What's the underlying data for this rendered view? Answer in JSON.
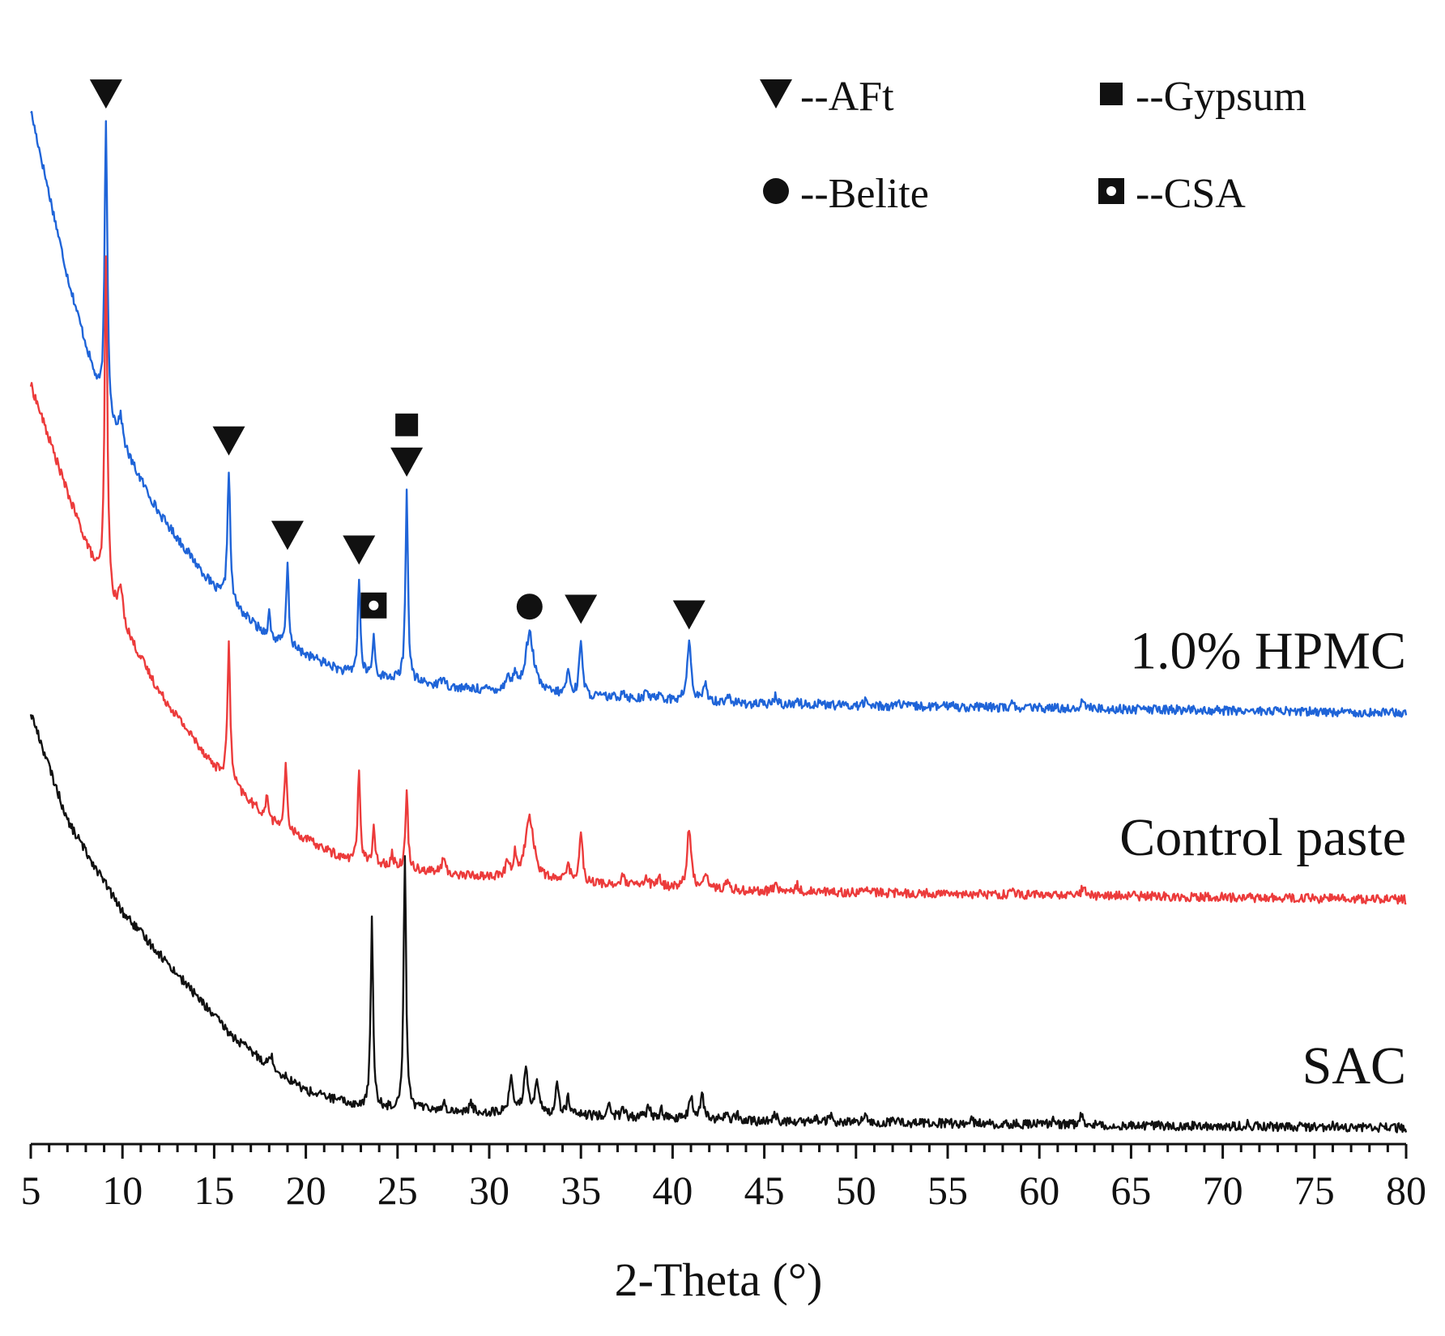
{
  "chart_data": {
    "type": "line",
    "title": "",
    "xlabel": "2-Theta (°)",
    "ylabel": "",
    "xlim": [
      5,
      80
    ],
    "xticks": [
      5,
      10,
      15,
      20,
      25,
      30,
      35,
      40,
      45,
      50,
      55,
      60,
      65,
      70,
      75,
      80
    ],
    "xtick_labels": [
      "5",
      "10",
      "15",
      "20",
      "25",
      "30",
      "35",
      "40",
      "45",
      "50",
      "55",
      "60",
      "65",
      "70",
      "75",
      "80"
    ],
    "y_axis_shown": false,
    "grid": false,
    "series": [
      {
        "name": "1.0% HPMC",
        "color": "#1f64d8",
        "offset": 100,
        "background": [
          [
            5,
            145
          ],
          [
            7,
            105
          ],
          [
            9,
            72
          ],
          [
            12,
            48
          ],
          [
            15,
            30
          ],
          [
            18,
            18
          ],
          [
            22,
            10
          ],
          [
            28,
            6
          ],
          [
            35,
            4
          ],
          [
            45,
            2
          ],
          [
            80,
            0
          ]
        ],
        "peaks": [
          [
            9.1,
            71,
            0.09
          ],
          [
            9.9,
            6,
            0.15
          ],
          [
            15.8,
            32,
            0.09
          ],
          [
            18.0,
            6,
            0.08
          ],
          [
            19.0,
            20,
            0.08
          ],
          [
            22.9,
            23,
            0.08
          ],
          [
            23.7,
            10,
            0.07
          ],
          [
            25.5,
            46,
            0.08
          ],
          [
            27.5,
            3,
            0.1
          ],
          [
            31.0,
            4,
            0.1
          ],
          [
            31.4,
            4,
            0.1
          ],
          [
            32.2,
            14,
            0.28
          ],
          [
            34.3,
            6,
            0.1
          ],
          [
            35.0,
            14,
            0.1
          ],
          [
            37.3,
            2,
            0.1
          ],
          [
            38.6,
            2,
            0.1
          ],
          [
            39.3,
            2,
            0.1
          ],
          [
            40.9,
            14,
            0.13
          ],
          [
            41.8,
            4,
            0.12
          ],
          [
            43.0,
            2,
            0.1
          ],
          [
            45.6,
            2,
            0.1
          ],
          [
            46.8,
            1.5,
            0.1
          ],
          [
            48.0,
            1,
            0.1
          ],
          [
            50.5,
            1.2,
            0.1
          ],
          [
            52.3,
            1,
            0.1
          ],
          [
            55.2,
            1,
            0.1
          ],
          [
            58.5,
            0.8,
            0.1
          ],
          [
            62.4,
            2.5,
            0.1
          ]
        ]
      },
      {
        "name": "Control paste",
        "color": "#ec3b3b",
        "offset": 55,
        "background": [
          [
            5,
            124
          ],
          [
            7,
            98
          ],
          [
            9,
            74
          ],
          [
            12,
            50
          ],
          [
            15,
            32
          ],
          [
            18,
            19
          ],
          [
            22,
            10
          ],
          [
            28,
            6
          ],
          [
            35,
            4
          ],
          [
            45,
            2
          ],
          [
            80,
            0
          ]
        ],
        "peaks": [
          [
            9.1,
            82,
            0.09
          ],
          [
            9.9,
            8,
            0.15
          ],
          [
            15.8,
            33,
            0.09
          ],
          [
            17.9,
            6,
            0.08
          ],
          [
            18.9,
            16,
            0.08
          ],
          [
            22.9,
            22,
            0.08
          ],
          [
            23.7,
            8,
            0.07
          ],
          [
            24.7,
            3,
            0.07
          ],
          [
            25.5,
            18,
            0.08
          ],
          [
            27.5,
            4,
            0.1
          ],
          [
            31.0,
            4,
            0.1
          ],
          [
            31.4,
            5,
            0.1
          ],
          [
            32.2,
            15,
            0.28
          ],
          [
            34.3,
            5,
            0.1
          ],
          [
            35.0,
            13,
            0.1
          ],
          [
            37.3,
            2,
            0.1
          ],
          [
            38.6,
            2,
            0.1
          ],
          [
            39.3,
            2,
            0.1
          ],
          [
            40.9,
            14,
            0.13
          ],
          [
            41.8,
            4,
            0.12
          ],
          [
            43.0,
            2,
            0.1
          ],
          [
            45.6,
            2,
            0.1
          ],
          [
            46.8,
            1.5,
            0.1
          ],
          [
            48.0,
            1,
            0.1
          ],
          [
            50.5,
            1.2,
            0.1
          ],
          [
            55.2,
            1,
            0.1
          ],
          [
            58.5,
            0.8,
            0.1
          ],
          [
            62.4,
            2.5,
            0.1
          ]
        ]
      },
      {
        "name": "SAC",
        "color": "#111111",
        "offset": 0,
        "background": [
          [
            5,
            100
          ],
          [
            7,
            74
          ],
          [
            10,
            52
          ],
          [
            14,
            32
          ],
          [
            16,
            22
          ],
          [
            18,
            15
          ],
          [
            20,
            9
          ],
          [
            23,
            5
          ],
          [
            28,
            4
          ],
          [
            35,
            3
          ],
          [
            45,
            1.5
          ],
          [
            80,
            0
          ]
        ],
        "peaks": [
          [
            18.1,
            3,
            0.1
          ],
          [
            23.6,
            45,
            0.08
          ],
          [
            25.4,
            61,
            0.08
          ],
          [
            26.6,
            1.5,
            0.1
          ],
          [
            27.5,
            2,
            0.1
          ],
          [
            29.0,
            2,
            0.1
          ],
          [
            31.2,
            9,
            0.12
          ],
          [
            32.0,
            11,
            0.14
          ],
          [
            32.6,
            8,
            0.12
          ],
          [
            33.7,
            8,
            0.1
          ],
          [
            34.3,
            4,
            0.1
          ],
          [
            36.5,
            3,
            0.1
          ],
          [
            37.3,
            2,
            0.1
          ],
          [
            38.7,
            3,
            0.1
          ],
          [
            39.4,
            2,
            0.1
          ],
          [
            41.0,
            5,
            0.12
          ],
          [
            41.6,
            6,
            0.12
          ],
          [
            42.9,
            2,
            0.1
          ],
          [
            43.5,
            1.5,
            0.1
          ],
          [
            45.6,
            2,
            0.1
          ],
          [
            47.8,
            1,
            0.1
          ],
          [
            48.6,
            1.5,
            0.1
          ],
          [
            50.5,
            1.5,
            0.1
          ],
          [
            52.3,
            2,
            0.1
          ],
          [
            56.3,
            1,
            0.1
          ],
          [
            60.8,
            1,
            0.1
          ],
          [
            62.3,
            3,
            0.1
          ],
          [
            71.3,
            0.6,
            0.1
          ],
          [
            76.0,
            0.6,
            0.1
          ]
        ]
      }
    ],
    "markers": [
      {
        "phase": "AFt",
        "symbol": "triangle-down",
        "x": 9.1,
        "stack": 0
      },
      {
        "phase": "AFt",
        "symbol": "triangle-down",
        "x": 15.8,
        "stack": 0
      },
      {
        "phase": "AFt",
        "symbol": "triangle-down",
        "x": 19.0,
        "stack": 0
      },
      {
        "phase": "AFt",
        "symbol": "triangle-down",
        "x": 22.9,
        "stack": 0
      },
      {
        "phase": "CSA",
        "symbol": "open-square",
        "x": 23.7,
        "stack": 0
      },
      {
        "phase": "AFt",
        "symbol": "triangle-down",
        "x": 25.5,
        "stack": 0
      },
      {
        "phase": "Gypsum",
        "symbol": "square",
        "x": 25.5,
        "stack": 1
      },
      {
        "phase": "Belite",
        "symbol": "circle",
        "x": 32.2,
        "stack": 0
      },
      {
        "phase": "AFt",
        "symbol": "triangle-down",
        "x": 35.0,
        "stack": 0
      },
      {
        "phase": "AFt",
        "symbol": "triangle-down",
        "x": 40.9,
        "stack": 0
      }
    ],
    "legend": {
      "placement": "top-right",
      "entries": [
        {
          "symbol": "triangle-down",
          "label": "--AFt"
        },
        {
          "symbol": "square",
          "label": "--Gypsum"
        },
        {
          "symbol": "circle",
          "label": "--Belite"
        },
        {
          "symbol": "open-square",
          "label": "--CSA"
        }
      ]
    }
  }
}
